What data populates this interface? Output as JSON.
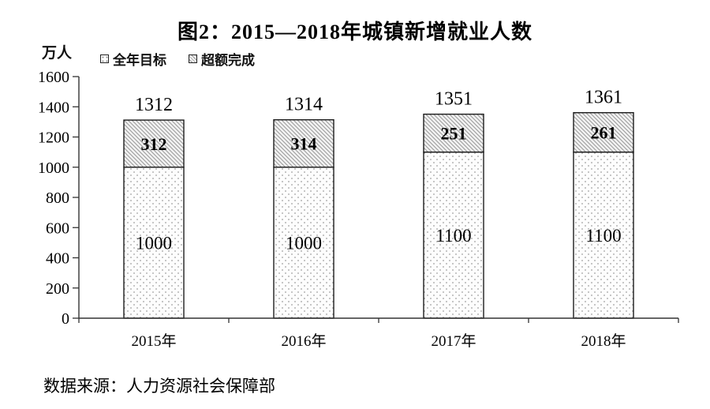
{
  "title": "图2：2015—2018年城镇新增就业人数",
  "unit_label": "万人",
  "legend": {
    "items": [
      {
        "label": "全年目标",
        "swatch": "dots-square-icon"
      },
      {
        "label": "超额完成",
        "swatch": "hatch-square-icon"
      }
    ]
  },
  "source": "数据来源：人力资源社会保障部",
  "colors": {
    "background": "#ffffff",
    "axis": "#333333",
    "text": "#000000",
    "bar_border": "#1c1c1c",
    "dot_pattern_dot": "#a0a0a0",
    "dot_pattern_bg": "#fdfdfd",
    "hatch_pattern_line": "#9b9b9b",
    "hatch_pattern_bg": "#f3f3f3"
  },
  "chart_data": {
    "type": "bar",
    "stacked": true,
    "title": "图2：2015—2018年城镇新增就业人数",
    "categories": [
      "2015年",
      "2016年",
      "2017年",
      "2018年"
    ],
    "series": [
      {
        "name": "全年目标",
        "pattern": "dots",
        "values": [
          1000,
          1000,
          1100,
          1100
        ]
      },
      {
        "name": "超额完成",
        "pattern": "hatch",
        "values": [
          312,
          314,
          251,
          261
        ]
      }
    ],
    "totals": [
      1312,
      1314,
      1351,
      1361
    ],
    "xlabel": "",
    "ylabel": "万人",
    "ylim": [
      0,
      1600
    ],
    "yticks": [
      0,
      200,
      400,
      600,
      800,
      1000,
      1200,
      1400,
      1600
    ],
    "grid": false,
    "legend_position": "top-left"
  }
}
